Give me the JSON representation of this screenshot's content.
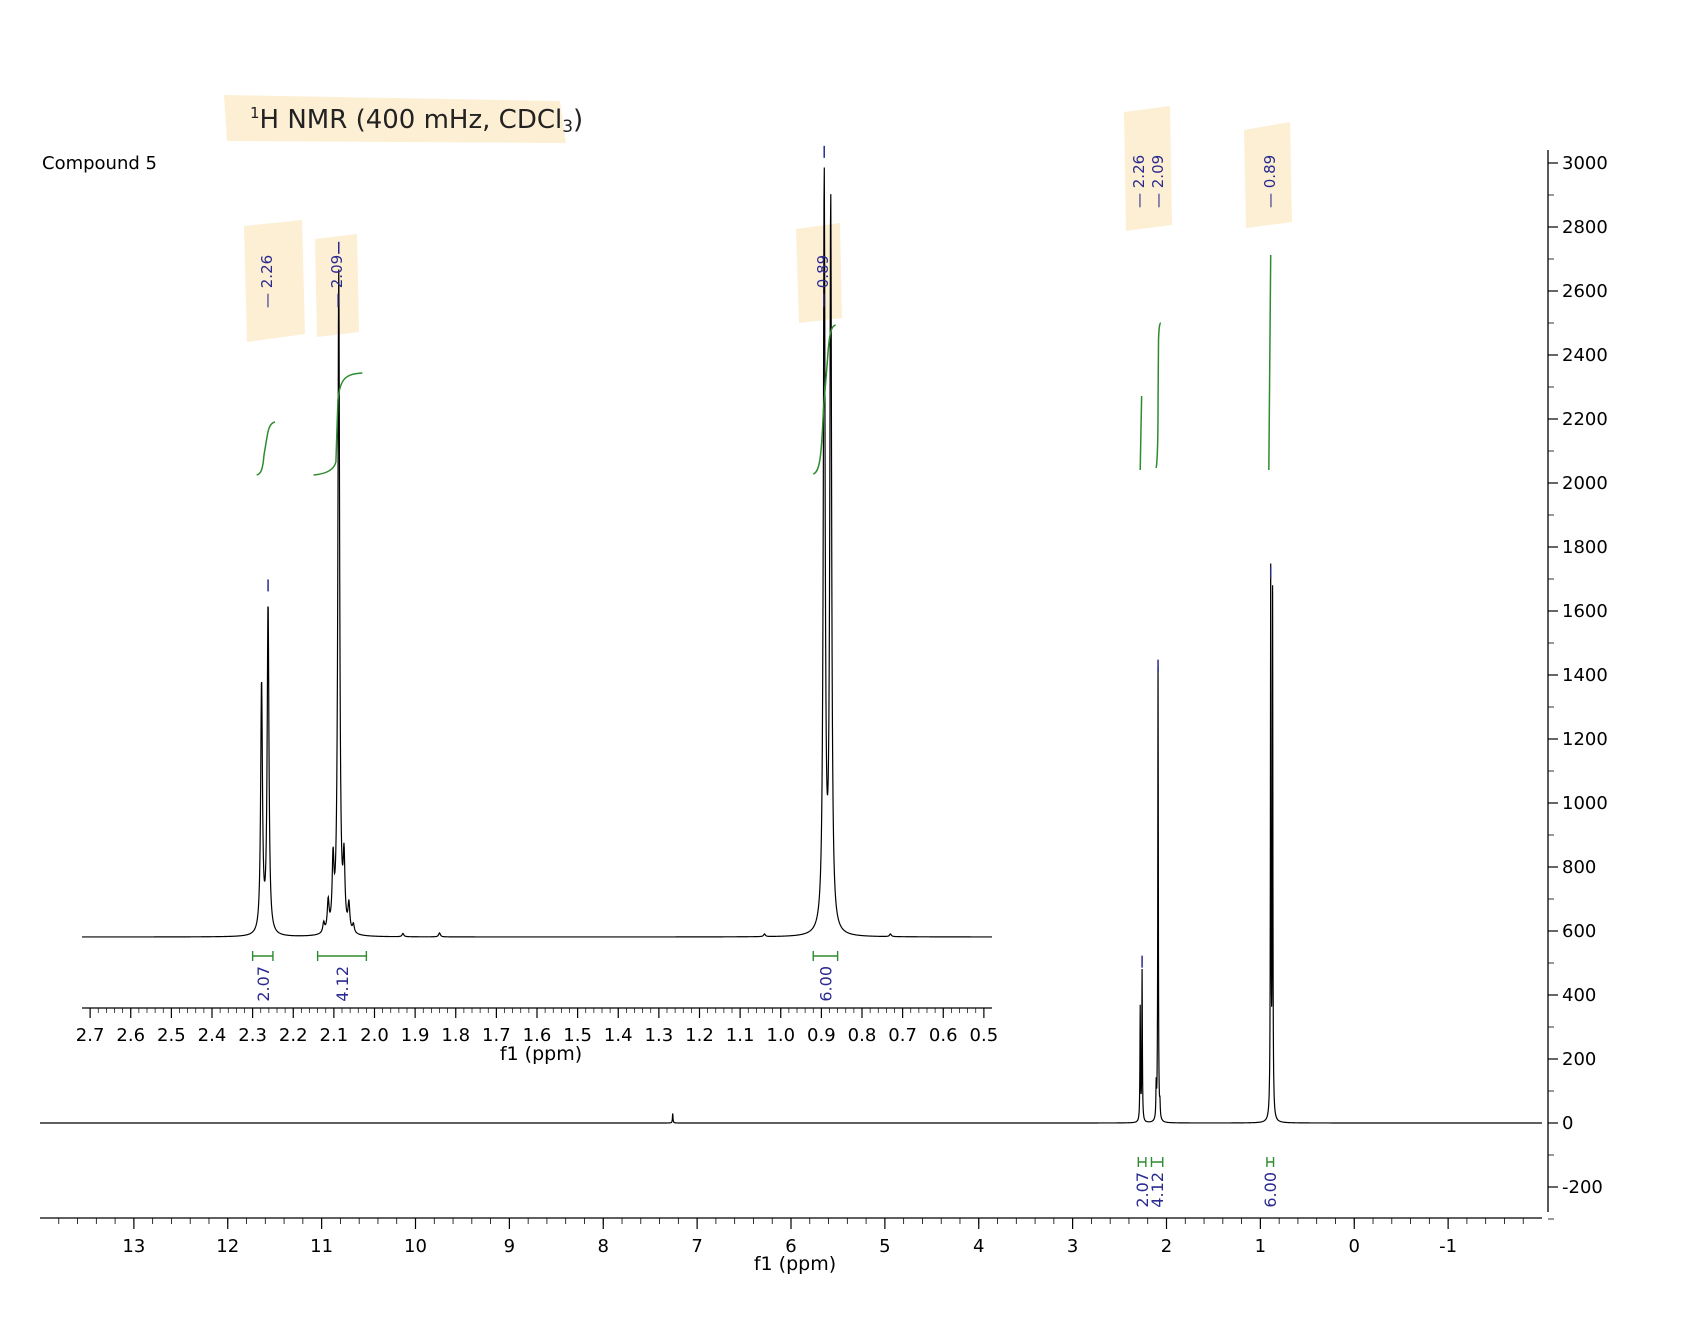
{
  "chart_data": {
    "type": "line",
    "title": "1H NMR (400 mHz, CDCl3)",
    "title_parts": {
      "sup": "1",
      "main": "H NMR (400 mHz, CDCl",
      "sub": "3",
      "end": ")"
    },
    "sample_label": "Compound 5",
    "highlight_color": "#fcefd4",
    "spectrum_color": "#000000",
    "integral_color": "#2e8b2e",
    "peak_label_color": "#2b2b8f",
    "main_plot": {
      "xlabel": "f1 (ppm)",
      "xlim": [
        14.0,
        -2.0
      ],
      "x_ticks": [
        "13",
        "12",
        "11",
        "10",
        "9",
        "8",
        "7",
        "6",
        "5",
        "4",
        "3",
        "2",
        "1",
        "0",
        "-1"
      ],
      "y_ticks": [
        "3000",
        "2800",
        "2600",
        "2400",
        "2200",
        "2000",
        "1800",
        "1600",
        "1400",
        "1200",
        "1000",
        "800",
        "600",
        "400",
        "200",
        "0",
        "-200"
      ],
      "ylim": [
        -300,
        3000
      ],
      "peaks": [
        {
          "ppm": 2.26,
          "intensity": 470
        },
        {
          "ppm": 2.28,
          "intensity": 355
        },
        {
          "ppm": 2.09,
          "intensity": 1420
        },
        {
          "ppm": 2.11,
          "intensity": 100
        },
        {
          "ppm": 2.07,
          "intensity": 40
        },
        {
          "ppm": 0.89,
          "intensity": 1700
        },
        {
          "ppm": 0.87,
          "intensity": 1630
        },
        {
          "ppm": 7.26,
          "intensity": 30
        }
      ],
      "peak_labels": [
        "2.26",
        "2.09",
        "0.89"
      ],
      "integrals": [
        {
          "from": 2.3,
          "to": 2.22,
          "value": "2.07"
        },
        {
          "from": 2.16,
          "to": 2.04,
          "value": "4.12"
        },
        {
          "from": 0.93,
          "to": 0.86,
          "value": "6.00"
        }
      ]
    },
    "inset_plot": {
      "xlabel": "f1 (ppm)",
      "xlim": [
        2.72,
        0.48
      ],
      "x_ticks": [
        "2.7",
        "2.6",
        "2.5",
        "2.4",
        "2.3",
        "2.2",
        "2.1",
        "2.0",
        "1.9",
        "1.8",
        "1.7",
        "1.6",
        "1.5",
        "1.4",
        "1.3",
        "1.2",
        "1.1",
        "1.0",
        "0.9",
        "0.8",
        "0.7",
        "0.6",
        "0.5"
      ],
      "peaks": [
        {
          "ppm": 2.262,
          "intensity": 1.0
        },
        {
          "ppm": 2.278,
          "intensity": 0.76
        },
        {
          "ppm": 2.088,
          "intensity": 2.0
        },
        {
          "ppm": 2.102,
          "intensity": 0.2
        },
        {
          "ppm": 2.075,
          "intensity": 0.2
        },
        {
          "ppm": 2.114,
          "intensity": 0.09
        },
        {
          "ppm": 2.063,
          "intensity": 0.08
        },
        {
          "ppm": 2.125,
          "intensity": 0.03
        },
        {
          "ppm": 2.052,
          "intensity": 0.025
        },
        {
          "ppm": 0.893,
          "intensity": 2.28
        },
        {
          "ppm": 0.877,
          "intensity": 2.2
        },
        {
          "ppm": 1.93,
          "intensity": 0.01
        },
        {
          "ppm": 1.84,
          "intensity": 0.012
        },
        {
          "ppm": 1.04,
          "intensity": 0.008
        },
        {
          "ppm": 0.73,
          "intensity": 0.008
        }
      ],
      "peak_labels": [
        "2.26",
        "2.09",
        "0.89"
      ],
      "integrals": [
        {
          "from": 2.3,
          "to": 2.25,
          "value": "2.07"
        },
        {
          "from": 2.14,
          "to": 2.02,
          "value": "4.12"
        },
        {
          "from": 0.92,
          "to": 0.86,
          "value": "6.00"
        }
      ]
    }
  }
}
